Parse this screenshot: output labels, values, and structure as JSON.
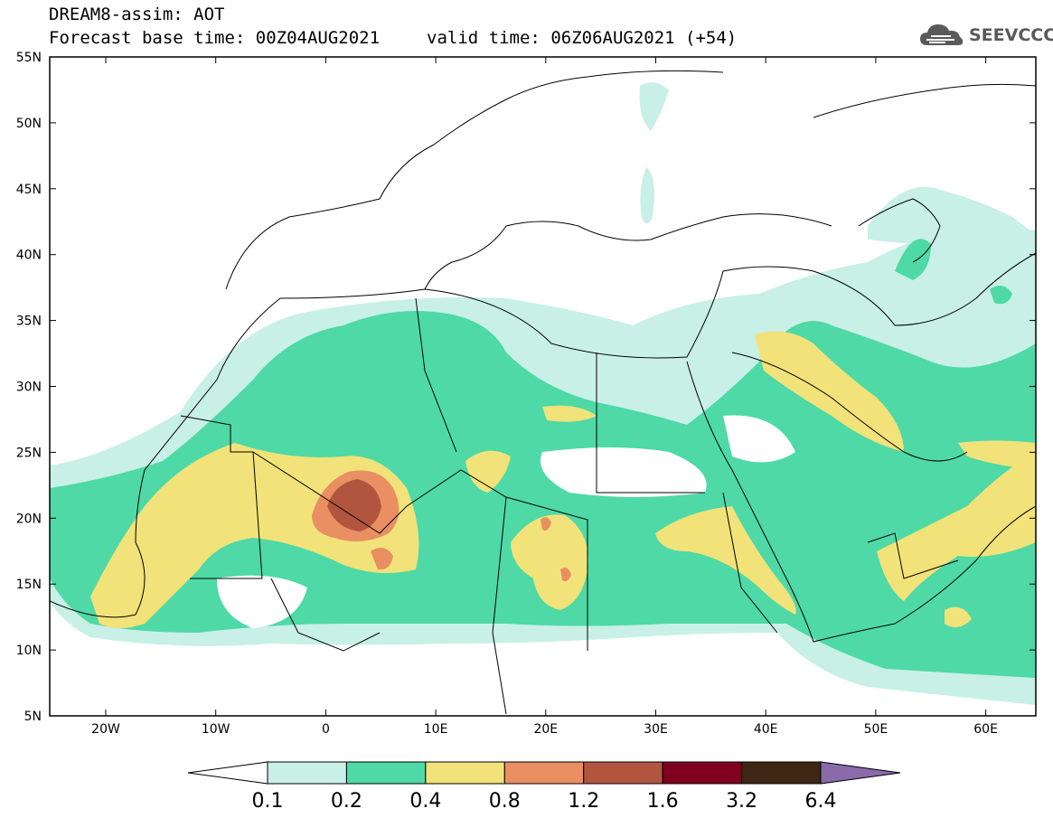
{
  "header": {
    "model_title": "DREAM8-assim: AOT",
    "forecast_line": "Forecast base time: 00Z04AUG2021",
    "valid_line": "valid time: 06Z06AUG2021 (+54)"
  },
  "logo": {
    "text": "SEEVCCC",
    "icon": "cloud-icon"
  },
  "axes": {
    "lat_labels": [
      "55N",
      "50N",
      "45N",
      "40N",
      "35N",
      "30N",
      "25N",
      "20N",
      "15N",
      "10N",
      "5N"
    ],
    "lon_labels": [
      "20W",
      "10W",
      "0",
      "10E",
      "20E",
      "30E",
      "40E",
      "50E",
      "60E"
    ]
  },
  "colorbar": {
    "labels": [
      "0.1",
      "0.2",
      "0.4",
      "0.8",
      "1.2",
      "1.6",
      "3.2",
      "6.4"
    ],
    "colors": [
      "#ffffff",
      "#c8f0e6",
      "#4ed9a6",
      "#f2e27a",
      "#e98f62",
      "#b1553f",
      "#800020",
      "#3d2614",
      "#8a6aa8"
    ]
  },
  "palette": {
    "c1": "#c8f0e6",
    "c2": "#4ed9a6",
    "c3": "#f2e27a",
    "c4": "#e98f62",
    "c5": "#b1553f"
  }
}
